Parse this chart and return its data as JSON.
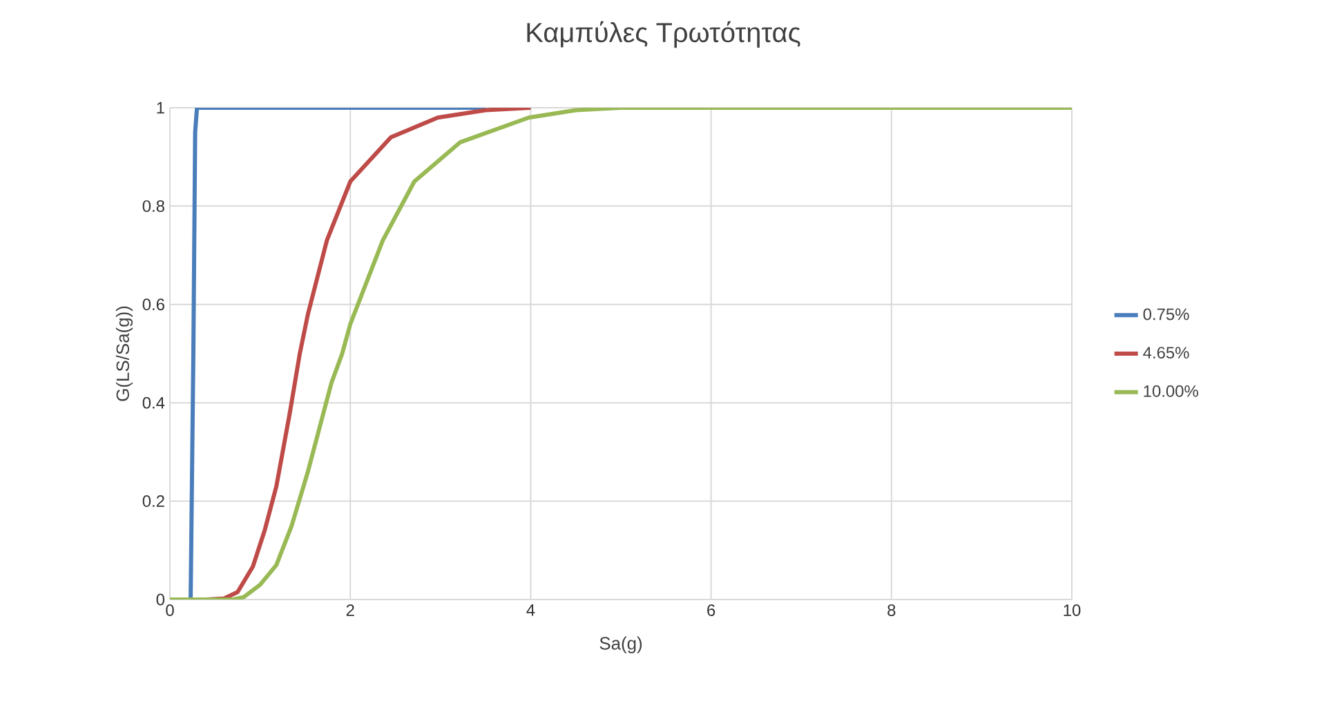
{
  "chart_data": {
    "type": "line",
    "title": "Καμπύλες Τρωτότητας",
    "xlabel": "Sa(g)",
    "ylabel": "G(LS/Sa(g))",
    "xlim": [
      0,
      10
    ],
    "xticks": [
      0,
      2,
      4,
      6,
      8,
      10
    ],
    "ylim": [
      0,
      1
    ],
    "yticks": [
      0,
      0.2,
      0.4,
      0.6,
      0.8,
      1
    ],
    "grid": true,
    "legend": "right",
    "line_style": "solid",
    "marker": "none",
    "series": [
      {
        "name": "0.75%",
        "color": "#4a7ebb",
        "x": [
          0,
          0.1,
          0.2,
          0.23,
          0.26,
          0.28,
          0.3,
          0.35,
          0.5,
          1,
          2,
          3.5
        ],
        "values": [
          0,
          0,
          0,
          0,
          0.5,
          0.95,
          1,
          1,
          1,
          1,
          1,
          1
        ]
      },
      {
        "name": "4.65%",
        "color": "#be4b48",
        "x": [
          0,
          0.4,
          0.6,
          0.75,
          0.92,
          1.05,
          1.18,
          1.33,
          1.44,
          1.53,
          1.74,
          2,
          2.45,
          2.97,
          3.5,
          4
        ],
        "values": [
          0,
          0,
          0.002,
          0.015,
          0.067,
          0.14,
          0.23,
          0.38,
          0.5,
          0.58,
          0.73,
          0.85,
          0.94,
          0.98,
          0.995,
          1
        ]
      },
      {
        "name": "10.00%",
        "color": "#98b954",
        "x": [
          0,
          0.5,
          0.7,
          0.82,
          1,
          1.18,
          1.35,
          1.53,
          1.79,
          1.91,
          2,
          2.36,
          2.71,
          3.22,
          3.98,
          4.5,
          5,
          6,
          8,
          10
        ],
        "values": [
          0,
          0,
          0,
          0.005,
          0.03,
          0.07,
          0.15,
          0.26,
          0.44,
          0.5,
          0.56,
          0.73,
          0.85,
          0.93,
          0.98,
          0.995,
          1,
          1,
          1,
          1
        ]
      }
    ]
  }
}
